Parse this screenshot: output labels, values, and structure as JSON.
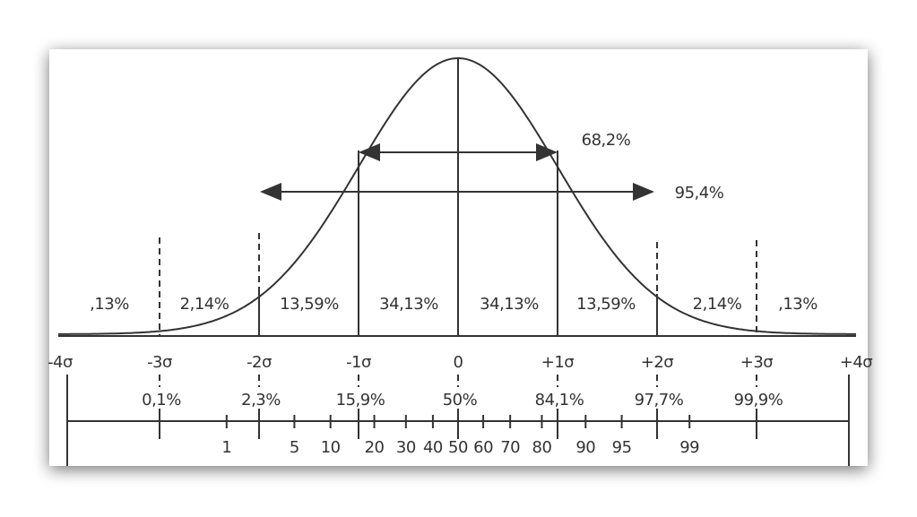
{
  "arrows": {
    "inner": "68,2%",
    "outer": "95,4%"
  },
  "band_percentages": [
    ",13%",
    "2,14%",
    "13,59%",
    "34,13%",
    "34,13%",
    "13,59%",
    "2,14%",
    ",13%"
  ],
  "sigma_labels": [
    "-4σ",
    "-3σ",
    "-2σ",
    "-1σ",
    "0",
    "+1σ",
    "+2σ",
    "+3σ",
    "+4σ"
  ],
  "cumulative_percentages": [
    "0,1%",
    "2,3%",
    "15,9%",
    "50%",
    "84,1%",
    "97,7%",
    "99,9%"
  ],
  "percentile_scale": [
    "1",
    "5",
    "10",
    "20",
    "30",
    "40",
    "50",
    "60",
    "70",
    "80",
    "90",
    "95",
    "99"
  ]
}
